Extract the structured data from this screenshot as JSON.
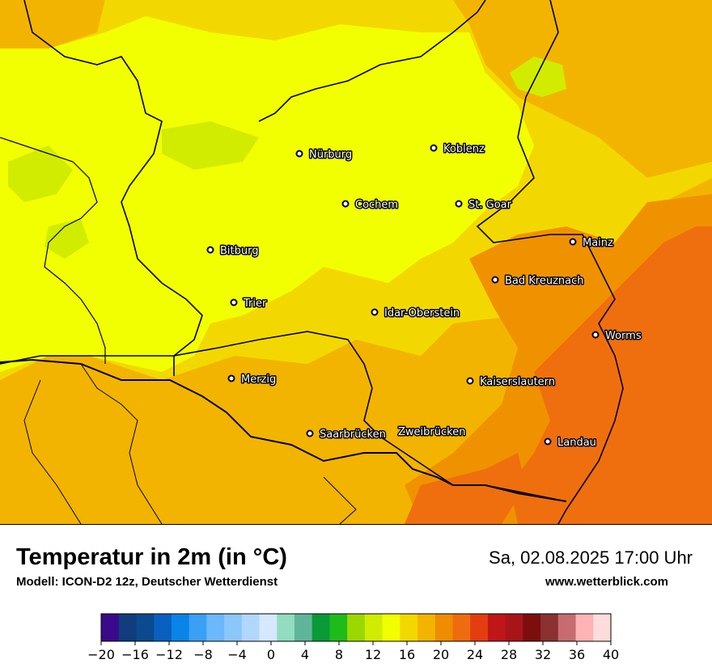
{
  "map": {
    "cities": [
      {
        "name": "Nürburg",
        "icon": "city-dot-icon"
      },
      {
        "name": "Koblenz",
        "icon": "city-dot-icon"
      },
      {
        "name": "Cochem",
        "icon": "city-dot-icon"
      },
      {
        "name": "St. Goar",
        "icon": "city-dot-icon"
      },
      {
        "name": "Mainz",
        "icon": "city-dot-icon"
      },
      {
        "name": "Bitburg",
        "icon": "city-dot-icon"
      },
      {
        "name": "Bad Kreuznach",
        "icon": "city-dot-icon"
      },
      {
        "name": "Trier",
        "icon": "city-dot-icon"
      },
      {
        "name": "Idar-Oberstein",
        "icon": "city-dot-icon"
      },
      {
        "name": "Worms",
        "icon": "city-dot-icon"
      },
      {
        "name": "Merzig",
        "icon": "city-dot-icon"
      },
      {
        "name": "Kaiserslautern",
        "icon": "city-dot-icon"
      },
      {
        "name": "Saarbrücken",
        "icon": "city-dot-icon"
      },
      {
        "name": "Zweibrücken",
        "icon": "city-dot-icon"
      },
      {
        "name": "Landau",
        "icon": "city-dot-icon"
      }
    ],
    "temperature_zones": [
      {
        "range": "14-16",
        "color": "#d2ec00"
      },
      {
        "range": "16-18",
        "color": "#f2ff00"
      },
      {
        "range": "18-20",
        "color": "#f3d800"
      },
      {
        "range": "20-22",
        "color": "#f3b400"
      },
      {
        "range": "22-24",
        "color": "#f09200"
      },
      {
        "range": "24-26",
        "color": "#ef6f0e"
      }
    ]
  },
  "footer": {
    "title": "Temperatur in 2m (in °C)",
    "subtitle": "Modell: ICON-D2 12z, Deutscher Wetterdienst",
    "datetime": "Sa, 02.08.2025 17:00 Uhr",
    "website": "www.wetterblick.com"
  },
  "scale": {
    "min": -20,
    "max": 40,
    "step": 2,
    "tick_labels": [
      "−20",
      "−16",
      "−12",
      "−8",
      "−4",
      "0",
      "4",
      "8",
      "12",
      "16",
      "20",
      "24",
      "28",
      "32",
      "36",
      "40"
    ],
    "colors": [
      "#3b0a8b",
      "#113c7e",
      "#0a4a8d",
      "#0960c0",
      "#0a84e6",
      "#3aa0f5",
      "#6cb8fb",
      "#8dc6fb",
      "#b2d7fc",
      "#d5e8fd",
      "#92dcc0",
      "#5fb59a",
      "#0a9a37",
      "#1fbb1b",
      "#9bd700",
      "#d0ec00",
      "#f2ff00",
      "#f3d800",
      "#f3b400",
      "#f08c00",
      "#ef6b10",
      "#e43d10",
      "#c0161a",
      "#a71518",
      "#7d0e0e",
      "#8b3131",
      "#c76b70",
      "#feb4b4",
      "#ffdcdc"
    ]
  }
}
